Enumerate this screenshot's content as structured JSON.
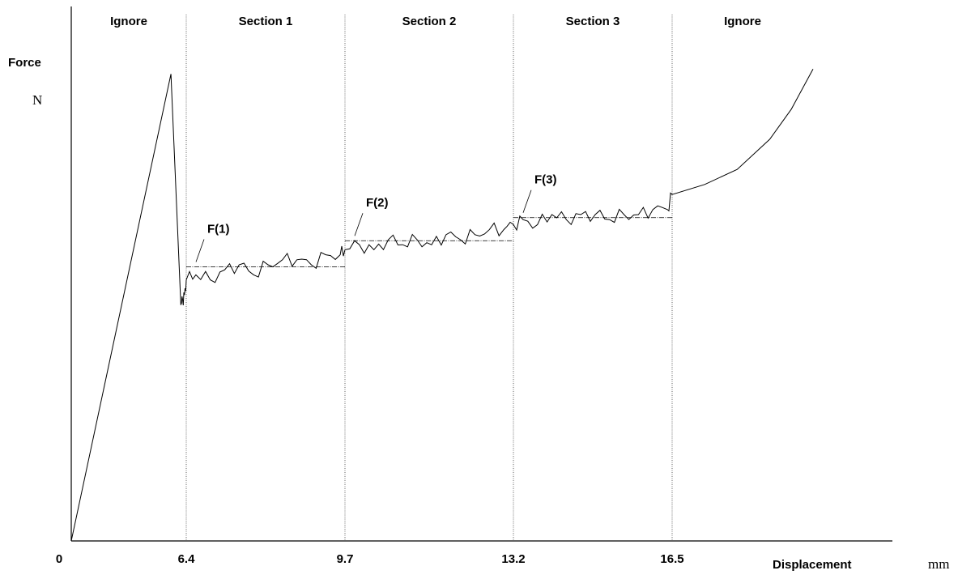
{
  "chart_data": {
    "type": "line",
    "title": "",
    "xlabel": "Displacement",
    "xunit": "mm",
    "ylabel": "Force",
    "yunit": "N",
    "x_ticks": [
      "0",
      "6.4",
      "9.7",
      "13.2",
      "16.5"
    ],
    "xlim": [
      0,
      17.8
    ],
    "ylim": [
      0,
      100
    ],
    "grid": false,
    "sections": [
      {
        "label": "Ignore",
        "from": 0,
        "to": 6.4
      },
      {
        "label": "Section 1",
        "from": 6.4,
        "to": 9.7
      },
      {
        "label": "Section 2",
        "from": 9.7,
        "to": 13.2
      },
      {
        "label": "Section 3",
        "from": 13.2,
        "to": 16.5
      },
      {
        "label": "Ignore",
        "from": 16.5,
        "to": 17.8
      }
    ],
    "levels": [
      {
        "label": "F(1)",
        "x_from": 6.4,
        "x_to": 9.7,
        "y": 54.6
      },
      {
        "label": "F(2)",
        "x_from": 9.7,
        "x_to": 13.2,
        "y": 59.8
      },
      {
        "label": "F(3)",
        "x_from": 13.2,
        "x_to": 16.5,
        "y": 64.4
      }
    ],
    "series": [
      {
        "x": [
          0,
          5.55,
          6.1,
          6.2,
          6.3,
          6.4,
          6.6,
          6.9,
          7.2,
          7.5,
          7.8,
          8.1,
          8.4,
          8.7,
          9.0,
          9.3,
          9.6,
          9.7,
          10.0,
          10.3,
          10.6,
          10.9,
          11.2,
          11.5,
          11.8,
          12.1,
          12.4,
          12.7,
          13.0,
          13.2,
          13.4,
          13.7,
          14.0,
          14.3,
          14.6,
          14.9,
          15.2,
          15.5,
          15.8,
          16.1,
          16.4,
          16.5,
          16.8,
          17.1,
          17.4,
          17.6,
          17.8
        ],
        "y": [
          0,
          93,
          47,
          48,
          49,
          52,
          53,
          52,
          54,
          55,
          53,
          55,
          56,
          56,
          55,
          57,
          57,
          58,
          59,
          58,
          60,
          59,
          60,
          59,
          61,
          60,
          61,
          62,
          62,
          63,
          64,
          63,
          65,
          64,
          65,
          65,
          64,
          65,
          65,
          66,
          66,
          69,
          71,
          74,
          80,
          86,
          94
        ]
      }
    ]
  }
}
